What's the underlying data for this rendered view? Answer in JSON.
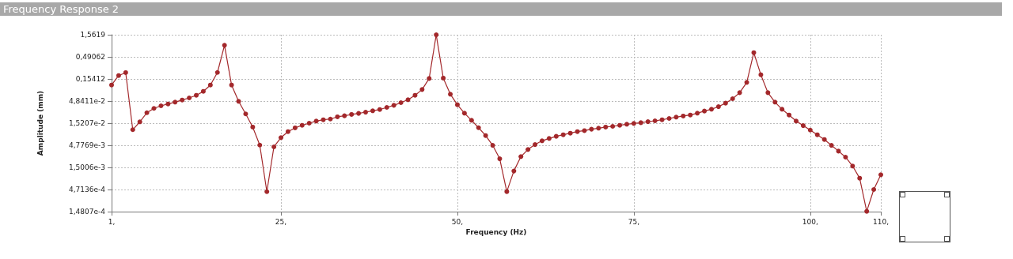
{
  "chart_data": {
    "type": "line",
    "title": "Frequency Response 2",
    "xlabel": "Frequency (Hz)",
    "ylabel": "Amplitude (mm)",
    "log": "y",
    "grid": true,
    "marker": "circle",
    "line_style": "solid",
    "xlim": [
      1,
      110
    ],
    "xticks": [
      {
        "value": 1,
        "label": "1,"
      },
      {
        "value": 25,
        "label": "25,"
      },
      {
        "value": 50,
        "label": "50,"
      },
      {
        "value": 75,
        "label": "75,"
      },
      {
        "value": 100,
        "label": "100,"
      },
      {
        "value": 110,
        "label": "110,"
      }
    ],
    "ylim": [
      0.00014807,
      1.5619
    ],
    "yticks": [
      {
        "value": 0.00014807,
        "label": "1,4807e-4"
      },
      {
        "value": 0.00047136,
        "label": "4,7136e-4"
      },
      {
        "value": 0.0015006,
        "label": "1,5006e-3"
      },
      {
        "value": 0.0047769,
        "label": "4,7769e-3"
      },
      {
        "value": 0.015207,
        "label": "1,5207e-2"
      },
      {
        "value": 0.048411,
        "label": "4,8411e-2"
      },
      {
        "value": 0.15412,
        "label": "0,15412"
      },
      {
        "value": 0.49062,
        "label": "0,49062"
      },
      {
        "value": 1.5619,
        "label": "1,5619"
      }
    ],
    "x": [
      1,
      2,
      3,
      4,
      5,
      6,
      7,
      8,
      9,
      10,
      11,
      12,
      13,
      14,
      15,
      16,
      17,
      18,
      19,
      20,
      21,
      22,
      23,
      24,
      25,
      26,
      27,
      28,
      29,
      30,
      31,
      32,
      33,
      34,
      35,
      36,
      37,
      38,
      39,
      40,
      41,
      42,
      43,
      44,
      45,
      46,
      47,
      48,
      49,
      50,
      51,
      52,
      53,
      54,
      55,
      56,
      57,
      58,
      59,
      60,
      61,
      62,
      63,
      64,
      65,
      66,
      67,
      68,
      69,
      70,
      71,
      72,
      73,
      74,
      75,
      76,
      77,
      78,
      79,
      80,
      81,
      82,
      83,
      84,
      85,
      86,
      87,
      88,
      89,
      90,
      91,
      92,
      93,
      94,
      95,
      96,
      97,
      98,
      99,
      100,
      101,
      102,
      103,
      104,
      105,
      106,
      107,
      108,
      109,
      110
    ],
    "series": [
      {
        "color": "#a3282b",
        "values": [
          0.112,
          0.184,
          0.215,
          0.0108,
          0.0163,
          0.0263,
          0.033,
          0.0378,
          0.0416,
          0.0458,
          0.0511,
          0.0571,
          0.0655,
          0.0805,
          0.112,
          0.217,
          0.9,
          0.112,
          0.0478,
          0.0247,
          0.0124,
          0.00483,
          0.000421,
          0.0044,
          0.00713,
          0.00977,
          0.0119,
          0.0136,
          0.0152,
          0.017,
          0.0182,
          0.0189,
          0.0212,
          0.0224,
          0.024,
          0.0254,
          0.0271,
          0.0291,
          0.0311,
          0.0348,
          0.0388,
          0.0446,
          0.0519,
          0.0655,
          0.0887,
          0.158,
          1.56,
          0.161,
          0.0693,
          0.0399,
          0.0257,
          0.0177,
          0.012,
          0.00794,
          0.00477,
          0.00236,
          0.000422,
          0.00124,
          0.00264,
          0.00383,
          0.00497,
          0.00604,
          0.00684,
          0.00764,
          0.00828,
          0.009,
          0.00977,
          0.0103,
          0.0111,
          0.0117,
          0.0124,
          0.0129,
          0.0136,
          0.0144,
          0.015,
          0.0156,
          0.0165,
          0.0172,
          0.0182,
          0.0195,
          0.0209,
          0.0221,
          0.0233,
          0.0257,
          0.0287,
          0.0316,
          0.0362,
          0.0434,
          0.0548,
          0.0752,
          0.129,
          0.611,
          0.192,
          0.0752,
          0.0458,
          0.0316,
          0.0233,
          0.017,
          0.0134,
          0.0106,
          0.00828,
          0.00647,
          0.00477,
          0.00352,
          0.00257,
          0.00161,
          0.000853,
          0.00015,
          0.000471,
          0.00102
        ]
      }
    ]
  }
}
